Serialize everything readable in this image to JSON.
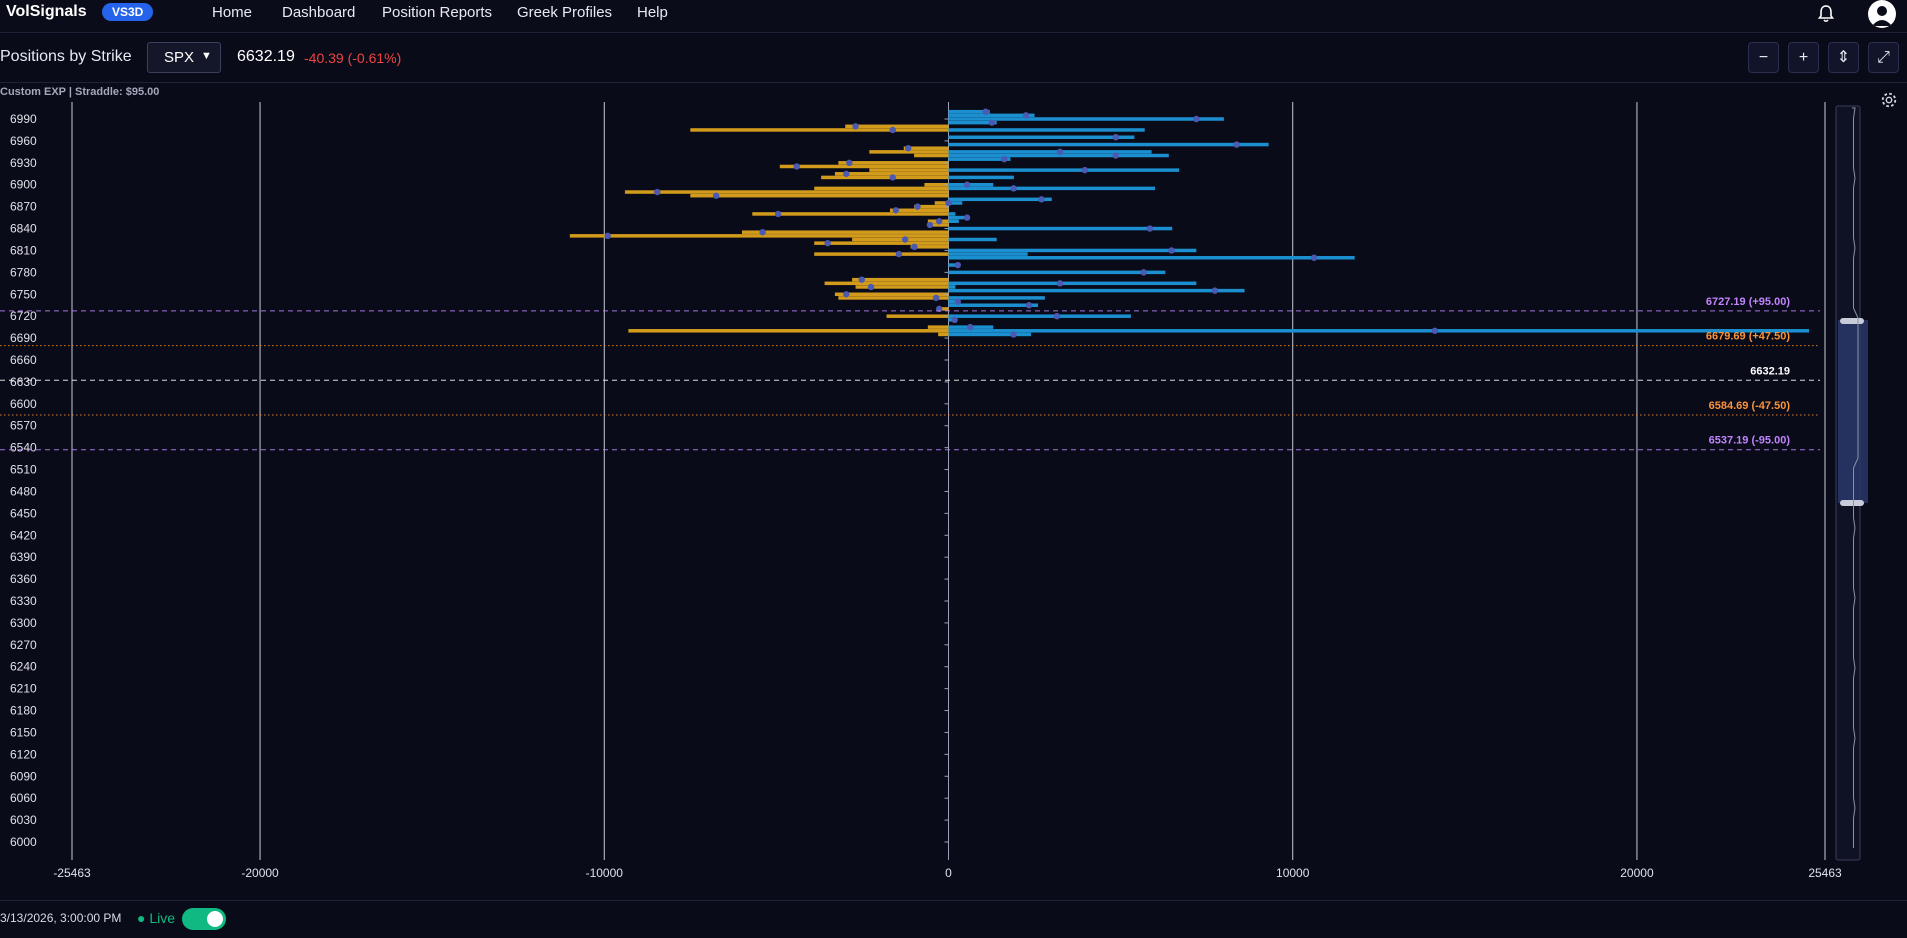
{
  "app": {
    "brand": "VolSignals",
    "badge": "VS3D",
    "nav": [
      "Home",
      "Dashboard",
      "Position Reports",
      "Greek Profiles",
      "Help"
    ]
  },
  "toolbar": {
    "title": "Positions by Strike",
    "ticker": "SPX",
    "price": "6632.19",
    "change": "-40.39 (-0.61%)",
    "buttons": [
      "−",
      "+",
      "⇕",
      "⤢"
    ]
  },
  "chart_meta": {
    "expiration_label": "Custom EXP  |  Straddle: $95.00"
  },
  "footer": {
    "timestamp": "3/13/2026, 3:00:00 PM",
    "live_label": "● Live",
    "live_on": true
  },
  "colors": {
    "background": "#0a0b18",
    "put_bar": "#d39b1c",
    "call_bar": "#1b8fcf",
    "net_dot": "#4a5ab3",
    "upper_straddle": "#c084fc",
    "expected_move": "#fb923c",
    "spot": "#ffffff"
  },
  "chart_data": {
    "type": "bar",
    "orientation": "horizontal",
    "y_ticks": [
      6990,
      6960,
      6930,
      6900,
      6870,
      6840,
      6810,
      6780,
      6750,
      6720,
      6690,
      6660,
      6630,
      6600,
      6570,
      6540,
      6510,
      6480,
      6450,
      6420,
      6390,
      6360,
      6330,
      6300,
      6270,
      6240,
      6210,
      6180,
      6150,
      6120,
      6090,
      6060,
      6030,
      6000
    ],
    "x_ticks": [
      -25463,
      -20000,
      -10000,
      0,
      10000,
      20000,
      25463
    ],
    "xlim": [
      -25463,
      25463
    ],
    "strike_step": 5,
    "strike_range": [
      5995,
      7000
    ],
    "series": [
      {
        "name": "Calls",
        "values_by_strike": {
          "7000": 1200,
          "6995": 2500,
          "6990": 8000,
          "6985": 1400,
          "6975": 5700,
          "6965": 5400,
          "6955": 9300,
          "6945": 5900,
          "6940": 6400,
          "6935": 1800,
          "6920": 6700,
          "6910": 1900,
          "6900": 1300,
          "6895": 6000,
          "6880": 3000,
          "6875": 400,
          "6860": 200,
          "6855": 600,
          "6850": 300,
          "6840": 6500,
          "6825": 1400,
          "6810": 7200,
          "6805": 2300,
          "6800": 11800,
          "6790": 300,
          "6780": 6300,
          "6765": 7200,
          "6760": 200,
          "6755": 8600,
          "6745": 2800,
          "6740": 300,
          "6735": 2600,
          "6720": 5300,
          "6715": 200,
          "6705": 1300,
          "6700": 25000,
          "6695": 2400,
          "6995b": 0
        }
      },
      {
        "name": "Puts",
        "values_by_strike": {
          "6980": -3000,
          "6975": -7500,
          "6950": -1300,
          "6945": -2300,
          "6940": -1000,
          "6930": -3200,
          "6925": -4900,
          "6920": -2300,
          "6915": -3300,
          "6910": -3700,
          "6900": -700,
          "6895": -3900,
          "6890": -9400,
          "6885": -7500,
          "6875": -400,
          "6870": -1000,
          "6865": -1700,
          "6860": -5700,
          "6850": -600,
          "6845": -600,
          "6835": -6000,
          "6830": -11000,
          "6825": -2800,
          "6820": -3900,
          "6815": -1100,
          "6805": -3900,
          "6770": -2800,
          "6765": -3600,
          "6760": -2700,
          "6750": -3300,
          "6745": -3200,
          "6730": -300,
          "6720": -1800,
          "6705": -600,
          "6700": -9300,
          "6695": -300
        }
      }
    ],
    "reference_lines": [
      {
        "label": "6727.19 (+95.00)",
        "value": 6727.19,
        "color": "#c084fc",
        "style": "dashed"
      },
      {
        "label": "6679.69 (+47.50)",
        "value": 6679.69,
        "color": "#fb923c",
        "style": "dotted"
      },
      {
        "label": "6632.19",
        "value": 6632.19,
        "color": "#ffffff",
        "style": "dashed"
      },
      {
        "label": "6584.69 (-47.50)",
        "value": 6584.69,
        "color": "#fb923c",
        "style": "dotted"
      },
      {
        "label": "6537.19 (-95.00)",
        "value": 6537.19,
        "color": "#c084fc",
        "style": "dashed"
      }
    ],
    "grid": true,
    "legend": "none"
  }
}
